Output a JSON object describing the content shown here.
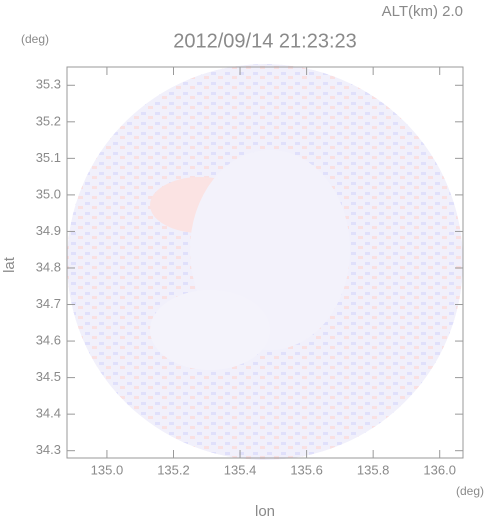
{
  "chart_data": {
    "type": "radar-map",
    "title": "2012/09/14 21:23:23",
    "subtitle": "ALT(km) 2.0",
    "x_label": "lon",
    "y_label": "lat",
    "x_unit": "(deg)",
    "y_unit": "(deg)",
    "xlim": [
      134.88,
      136.07
    ],
    "ylim": [
      34.28,
      35.35
    ],
    "xticks": [
      {
        "value": 135.0,
        "label": "135.0"
      },
      {
        "value": 135.2,
        "label": "135.2"
      },
      {
        "value": 135.4,
        "label": "135.4"
      },
      {
        "value": 135.6,
        "label": "135.6"
      },
      {
        "value": 135.8,
        "label": "135.8"
      },
      {
        "value": 136.0,
        "label": "136.0"
      }
    ],
    "yticks": [
      {
        "value": 34.3,
        "label": "34.3"
      },
      {
        "value": 34.4,
        "label": "34.4"
      },
      {
        "value": 34.5,
        "label": "34.5"
      },
      {
        "value": 34.6,
        "label": "34.6"
      },
      {
        "value": 34.7,
        "label": "34.7"
      },
      {
        "value": 34.8,
        "label": "34.8"
      },
      {
        "value": 34.9,
        "label": "34.9"
      },
      {
        "value": 35.0,
        "label": "35.0"
      },
      {
        "value": 35.1,
        "label": "35.1"
      },
      {
        "value": 35.2,
        "label": "35.2"
      },
      {
        "value": 35.3,
        "label": "35.3"
      }
    ]
  }
}
